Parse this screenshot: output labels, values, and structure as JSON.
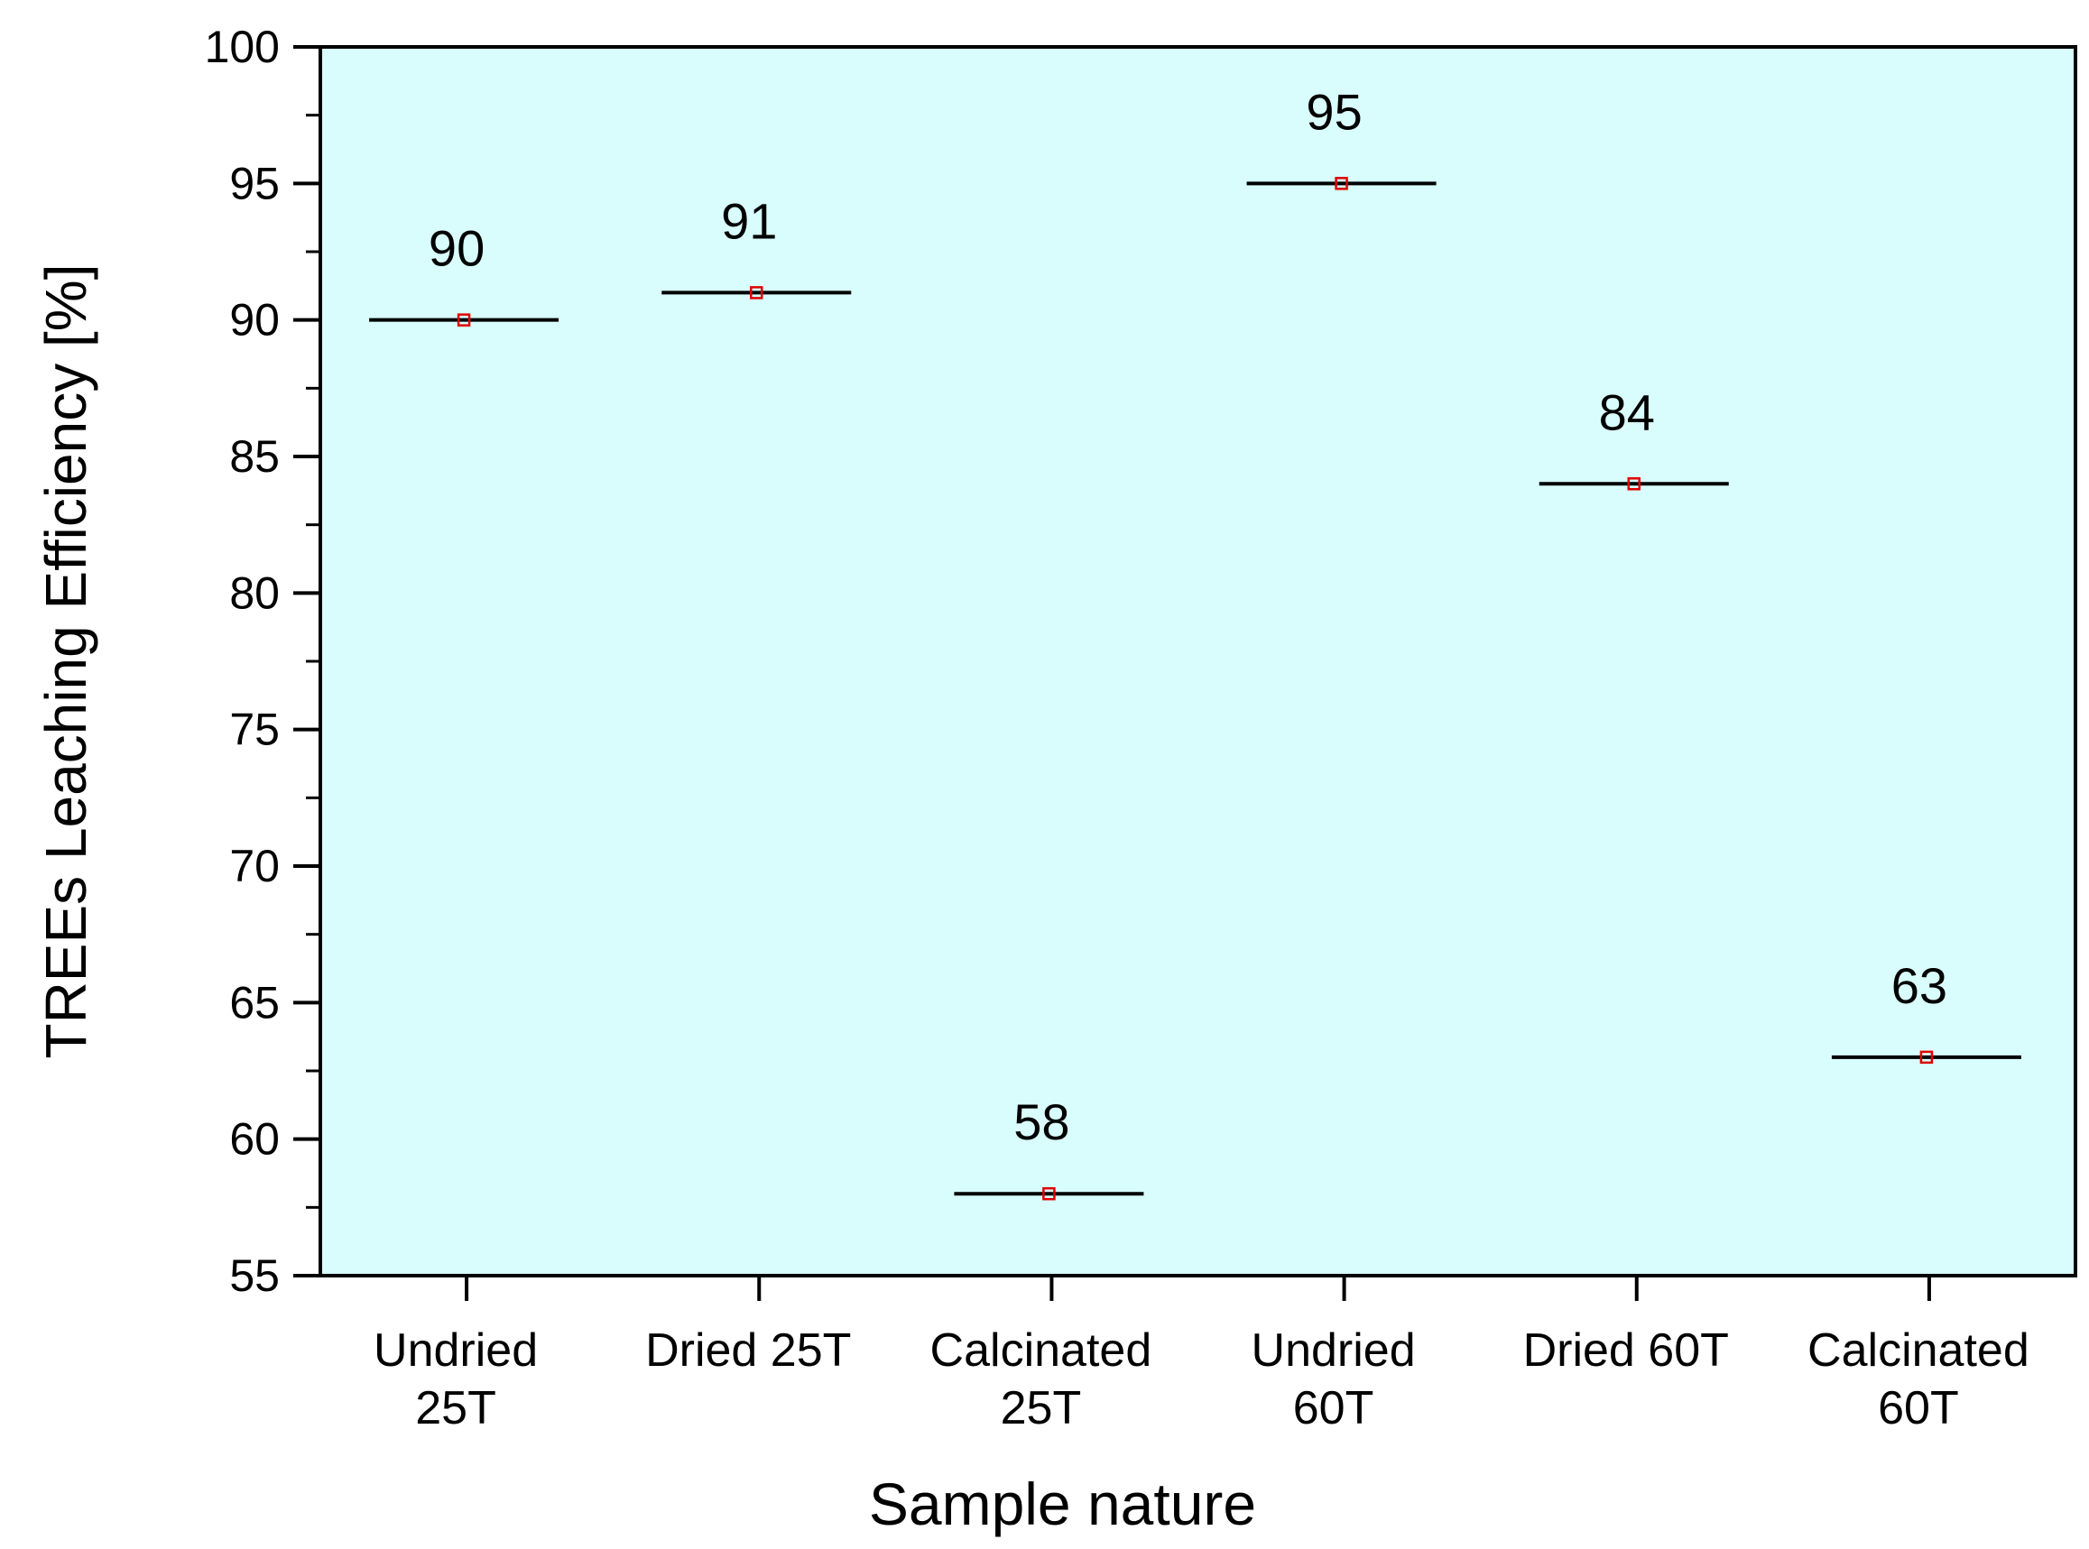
{
  "chart_data": {
    "type": "scatter",
    "title": "",
    "xlabel": "Sample nature",
    "ylabel": "TREEs Leaching Efficiency [%]",
    "ylim": [
      55,
      100
    ],
    "yticks": [
      55,
      60,
      65,
      70,
      75,
      80,
      85,
      90,
      95,
      100
    ],
    "y_minor_step": 2.5,
    "grid": false,
    "legend": "none",
    "categories": [
      [
        "Undried",
        "25T"
      ],
      [
        "Dried 25T"
      ],
      [
        "Calcinated",
        "25T"
      ],
      [
        "Undried",
        "60T"
      ],
      [
        "Dried 60T"
      ],
      [
        "Calcinated",
        "60T"
      ]
    ],
    "values": [
      90,
      91,
      58,
      95,
      84,
      63
    ],
    "data_labels": [
      "90",
      "91",
      "58",
      "95",
      "84",
      "63"
    ],
    "colors": {
      "plot_background": "#d9fdfd",
      "line": "#000000",
      "marker": "#e00000",
      "axis": "#000000"
    }
  }
}
